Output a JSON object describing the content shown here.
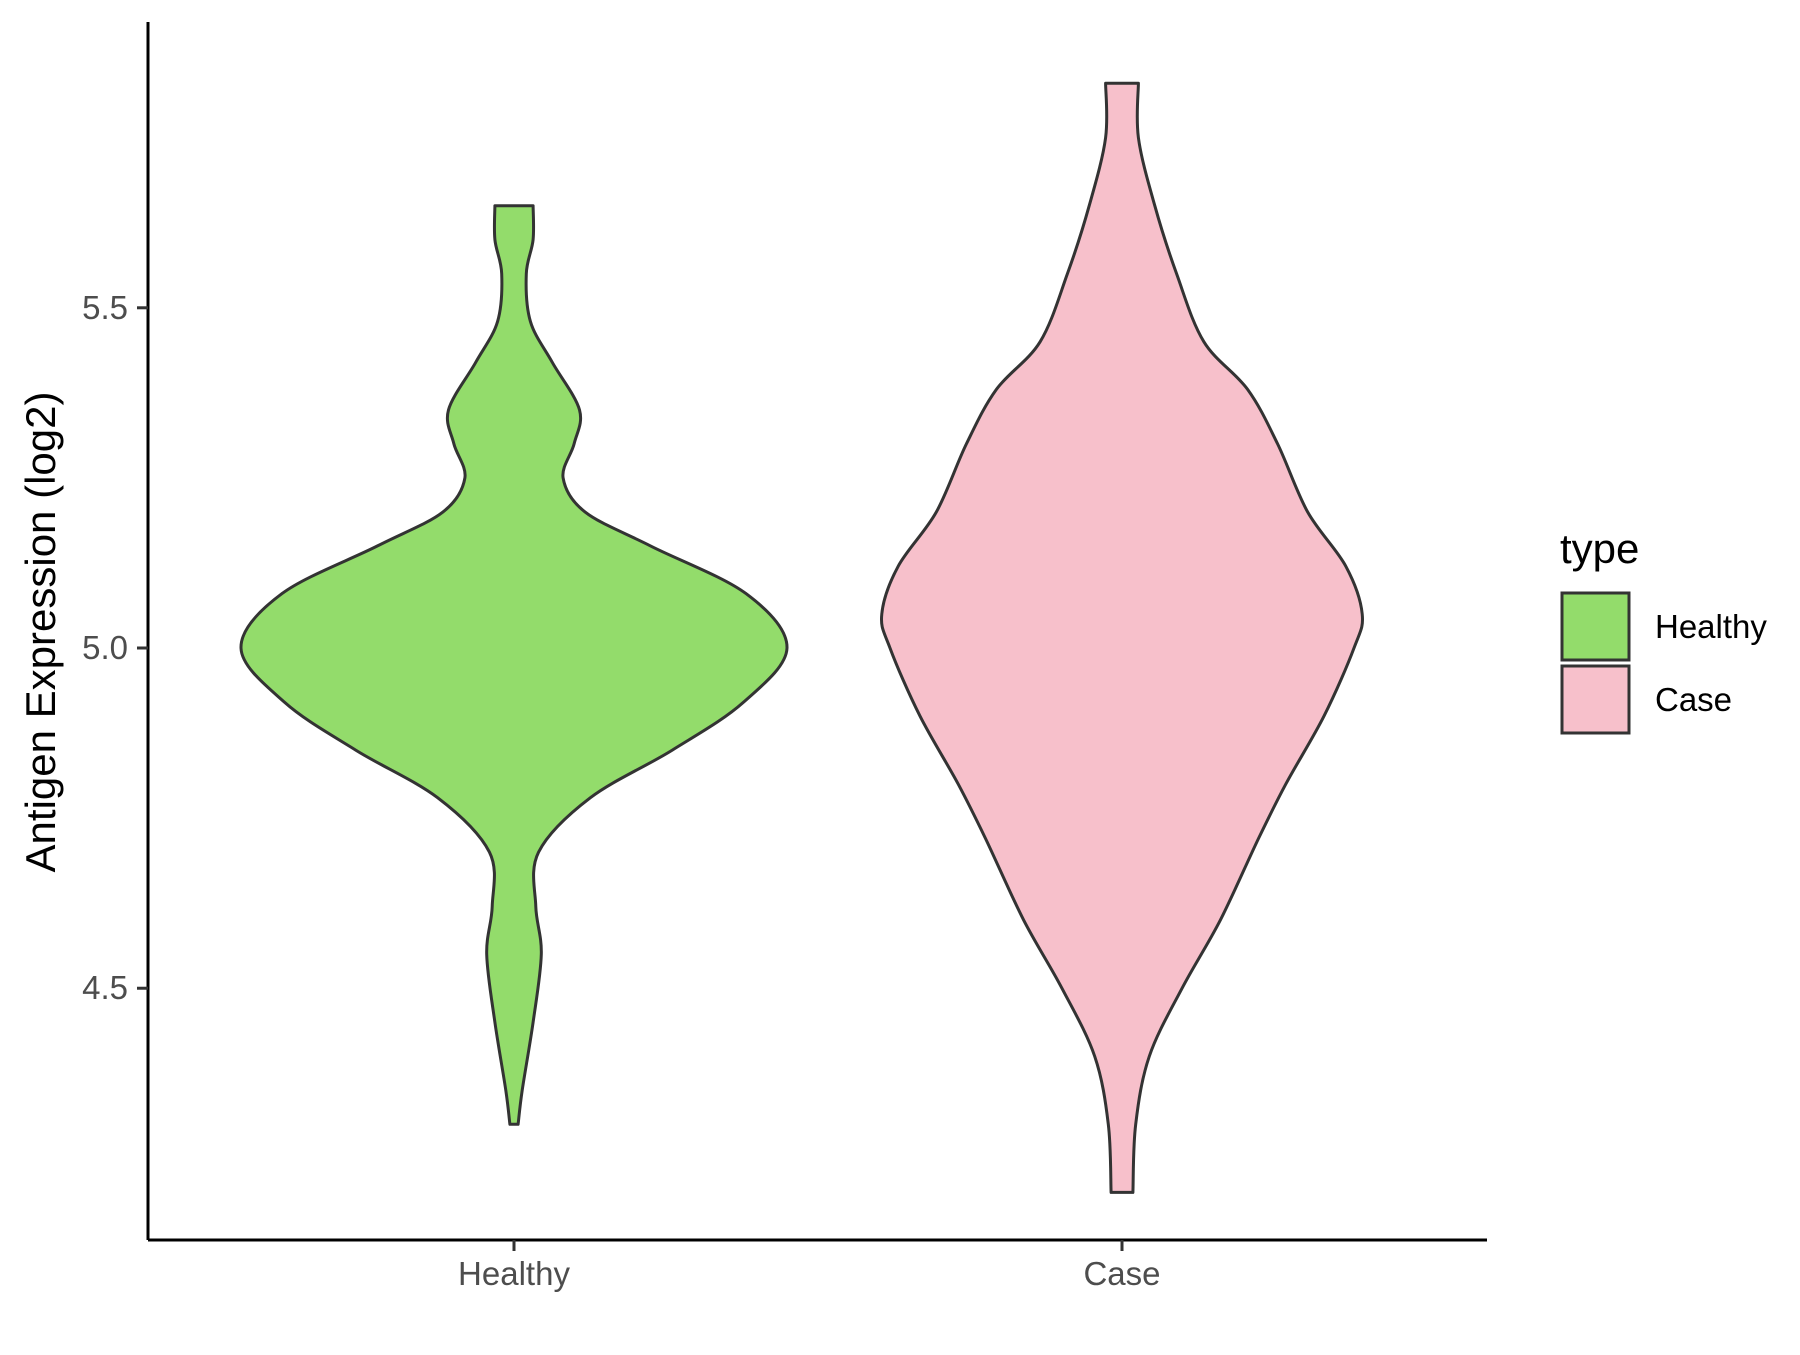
{
  "chart_data": {
    "type": "violin",
    "xlabel": "",
    "ylabel": "Antigen Expression (log2)",
    "ylim": [
      4.13,
      5.92
    ],
    "yticks": [
      "4.5",
      "5.0",
      "5.5"
    ],
    "categories": [
      "Healthy",
      "Case"
    ],
    "grid": false,
    "legend": {
      "title": "type",
      "placement": "right",
      "entries": [
        {
          "label": "Healthy",
          "color": "#93dc6b"
        },
        {
          "label": "Case",
          "color": "#f7c0cb"
        }
      ]
    },
    "series": [
      {
        "category": "Healthy",
        "color": "#93dc6b",
        "min": 4.3,
        "max": 5.65,
        "density_profile": [
          [
            4.3,
            0.015
          ],
          [
            4.35,
            0.03
          ],
          [
            4.45,
            0.07
          ],
          [
            4.55,
            0.1
          ],
          [
            4.62,
            0.08
          ],
          [
            4.7,
            0.09
          ],
          [
            4.78,
            0.28
          ],
          [
            4.85,
            0.58
          ],
          [
            4.92,
            0.84
          ],
          [
            5.0,
            1.0
          ],
          [
            5.08,
            0.85
          ],
          [
            5.15,
            0.5
          ],
          [
            5.2,
            0.26
          ],
          [
            5.25,
            0.18
          ],
          [
            5.3,
            0.22
          ],
          [
            5.35,
            0.24
          ],
          [
            5.42,
            0.14
          ],
          [
            5.48,
            0.06
          ],
          [
            5.55,
            0.045
          ],
          [
            5.6,
            0.07
          ],
          [
            5.65,
            0.07
          ]
        ]
      },
      {
        "category": "Case",
        "color": "#f7c0cb",
        "min": 4.2,
        "max": 5.83,
        "density_profile": [
          [
            4.2,
            0.04
          ],
          [
            4.3,
            0.05
          ],
          [
            4.4,
            0.1
          ],
          [
            4.5,
            0.22
          ],
          [
            4.6,
            0.36
          ],
          [
            4.72,
            0.5
          ],
          [
            4.8,
            0.6
          ],
          [
            4.9,
            0.74
          ],
          [
            5.0,
            0.85
          ],
          [
            5.05,
            0.88
          ],
          [
            5.12,
            0.82
          ],
          [
            5.2,
            0.68
          ],
          [
            5.3,
            0.57
          ],
          [
            5.38,
            0.46
          ],
          [
            5.45,
            0.3
          ],
          [
            5.55,
            0.2
          ],
          [
            5.65,
            0.12
          ],
          [
            5.75,
            0.06
          ],
          [
            5.83,
            0.06
          ]
        ]
      }
    ]
  }
}
